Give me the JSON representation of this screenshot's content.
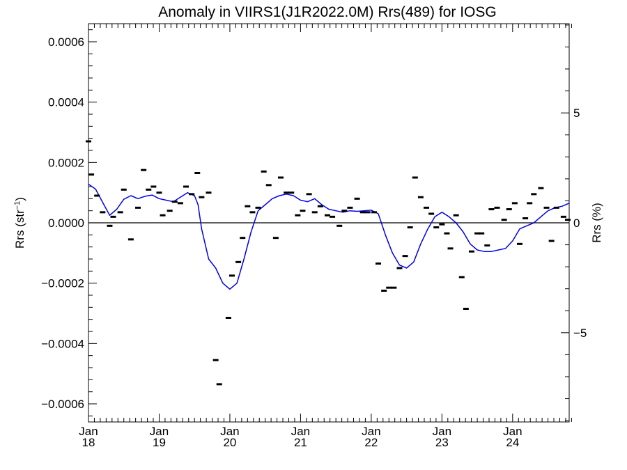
{
  "chart_data": {
    "type": "line",
    "title": "Anomaly in VIIRS1(J1R2022.0M) Rrs(489) for IOSG",
    "xlabel": "",
    "ylabel_left": "Rrs (str",
    "ylabel_left_sup": "−1",
    "ylabel_left_close": ")",
    "ylabel_right": "Rrs (%)",
    "xlim": [
      2018.0,
      2024.8
    ],
    "ylim": [
      -0.00066,
      0.00066
    ],
    "ylim_right": [
      -9.06,
      9.06
    ],
    "y_ticks": [
      -0.0006,
      -0.0004,
      -0.0002,
      0.0,
      0.0002,
      0.0004,
      0.0006
    ],
    "y_tick_labels": [
      "−0.0006",
      "−0.0004",
      "−0.0002",
      "0.0000",
      "0.0002",
      "0.0004",
      "0.0006"
    ],
    "y_right_ticks": [
      -5,
      0,
      5
    ],
    "y_right_tick_labels": [
      "−5",
      "0",
      "5"
    ],
    "x_ticks": [
      2018,
      2019,
      2020,
      2021,
      2022,
      2023,
      2024
    ],
    "x_tick_labels_month": [
      "Jan",
      "Jan",
      "Jan",
      "Jan",
      "Jan",
      "Jan",
      "Jan"
    ],
    "x_tick_labels_year": [
      "18",
      "19",
      "20",
      "21",
      "22",
      "23",
      "24"
    ],
    "zero_line": 0,
    "grid": false,
    "series": [
      {
        "kind": "line",
        "color": "#0000ee",
        "x": [
          2018.0,
          2018.1,
          2018.2,
          2018.3,
          2018.4,
          2018.5,
          2018.6,
          2018.7,
          2018.8,
          2018.9,
          2019.0,
          2019.1,
          2019.2,
          2019.3,
          2019.4,
          2019.5,
          2019.55,
          2019.6,
          2019.7,
          2019.8,
          2019.9,
          2020.0,
          2020.1,
          2020.2,
          2020.3,
          2020.4,
          2020.5,
          2020.6,
          2020.7,
          2020.8,
          2020.9,
          2021.0,
          2021.1,
          2021.2,
          2021.3,
          2021.4,
          2021.5,
          2021.6,
          2021.7,
          2021.8,
          2021.9,
          2022.0,
          2022.1,
          2022.2,
          2022.3,
          2022.4,
          2022.5,
          2022.6,
          2022.7,
          2022.8,
          2022.9,
          2023.0,
          2023.1,
          2023.2,
          2023.3,
          2023.4,
          2023.5,
          2023.6,
          2023.7,
          2023.8,
          2023.9,
          2024.0,
          2024.1,
          2024.2,
          2024.3,
          2024.4,
          2024.5,
          2024.6,
          2024.7,
          2024.8
        ],
        "y": [
          0.000128,
          0.000112,
          6.8e-05,
          2.5e-05,
          4.5e-05,
          7.8e-05,
          9e-05,
          8e-05,
          8.8e-05,
          9.2e-05,
          8e-05,
          7.5e-05,
          7e-05,
          8.5e-05,
          0.0001,
          9e-05,
          6e-05,
          -2e-05,
          -0.00012,
          -0.00015,
          -0.0002,
          -0.00022,
          -0.0002,
          -0.00012,
          -3e-05,
          4e-05,
          6e-05,
          8e-05,
          9e-05,
          9.5e-05,
          9e-05,
          7.5e-05,
          7e-05,
          8e-05,
          6e-05,
          4.5e-05,
          4e-05,
          3.5e-05,
          4e-05,
          3.8e-05,
          4e-05,
          4.2e-05,
          3e-05,
          -4e-05,
          -0.0001,
          -0.00014,
          -0.00015,
          -0.00013,
          -7e-05,
          -2e-05,
          2e-05,
          3.5e-05,
          2e-05,
          0.0,
          -3e-05,
          -7e-05,
          -9e-05,
          -9.5e-05,
          -9.5e-05,
          -9e-05,
          -8.5e-05,
          -6e-05,
          -2e-05,
          -1e-05,
          0.0,
          2e-05,
          4e-05,
          5e-05,
          5.5e-05,
          6.5e-05
        ]
      },
      {
        "kind": "points",
        "color": "#000000",
        "x": [
          2018.0,
          2018.04,
          2018.12,
          2018.2,
          2018.3,
          2018.35,
          2018.45,
          2018.5,
          2018.6,
          2018.7,
          2018.78,
          2018.85,
          2018.92,
          2019.0,
          2019.05,
          2019.15,
          2019.22,
          2019.3,
          2019.38,
          2019.46,
          2019.54,
          2019.6,
          2019.7,
          2019.8,
          2019.85,
          2019.98,
          2020.03,
          2020.12,
          2020.18,
          2020.25,
          2020.32,
          2020.4,
          2020.48,
          2020.55,
          2020.65,
          2020.72,
          2020.8,
          2020.87,
          2020.96,
          2021.03,
          2021.12,
          2021.2,
          2021.28,
          2021.38,
          2021.45,
          2021.55,
          2021.62,
          2021.7,
          2021.8,
          2021.88,
          2021.95,
          2022.04,
          2022.1,
          2022.18,
          2022.25,
          2022.32,
          2022.4,
          2022.48,
          2022.55,
          2022.62,
          2022.7,
          2022.78,
          2022.85,
          2022.92,
          2023.0,
          2023.07,
          2023.12,
          2023.2,
          2023.28,
          2023.34,
          2023.42,
          2023.5,
          2023.56,
          2023.64,
          2023.7,
          2023.78,
          2023.88,
          2023.95,
          2024.03,
          2024.1,
          2024.18,
          2024.24,
          2024.3,
          2024.4,
          2024.48,
          2024.55,
          2024.62,
          2024.72,
          2024.78
        ],
        "y": [
          0.00027,
          0.00016,
          9e-05,
          3.5e-05,
          -1e-05,
          2e-05,
          3.5e-05,
          0.00011,
          -5.5e-05,
          5e-05,
          0.000175,
          0.00011,
          0.00012,
          0.0001,
          2.5e-05,
          4e-05,
          7e-05,
          6.5e-05,
          0.00012,
          9.5e-05,
          0.000165,
          8.5e-05,
          0.0001,
          -0.000455,
          -0.000535,
          -0.000315,
          -0.000175,
          -0.00013,
          -5e-05,
          5.5e-05,
          3.5e-05,
          5e-05,
          0.00017,
          0.000125,
          -5e-05,
          0.00015,
          0.0001,
          0.0001,
          2.5e-05,
          4e-05,
          9.5e-05,
          3.5e-05,
          5.5e-05,
          2.5e-05,
          2e-05,
          -1e-05,
          4e-05,
          5e-05,
          8e-05,
          3.5e-05,
          3.5e-05,
          3.5e-05,
          -0.000135,
          -0.000225,
          -0.000215,
          -0.000215,
          -0.00015,
          -0.00011,
          -1.5e-05,
          0.00015,
          8.5e-05,
          5e-05,
          3e-05,
          -1.5e-05,
          -5e-06,
          -3.5e-05,
          -8.5e-05,
          2.5e-05,
          -0.00018,
          -0.000285,
          -9.5e-05,
          -3.5e-05,
          -3.5e-05,
          -7.5e-05,
          4.5e-05,
          5e-05,
          1e-05,
          4.5e-05,
          6.5e-05,
          -7e-05,
          1.5e-05,
          6.5e-05,
          9.5e-05,
          0.000115,
          5e-05,
          -6e-05,
          5e-05,
          2e-05,
          1e-05
        ]
      }
    ]
  }
}
